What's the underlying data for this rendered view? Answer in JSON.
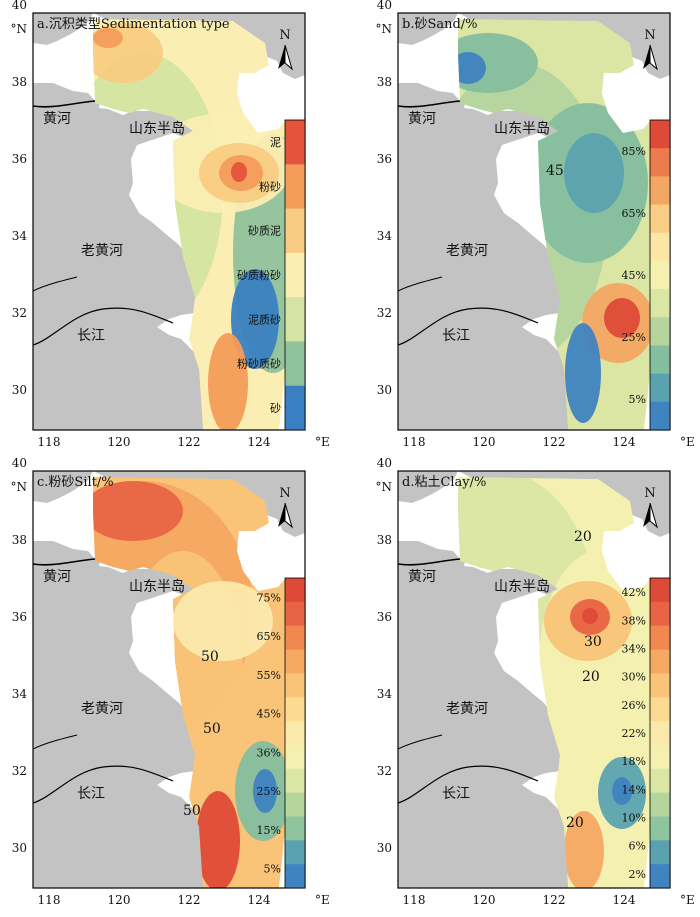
{
  "panels": [
    {
      "id": "a",
      "title": "a.沉积类型Sedimentation type",
      "legend": {
        "type": "categorical",
        "labels": [
          "泥",
          "粉砂",
          "砂质泥",
          "砂质粉砂",
          "泥质砂",
          "粉砂质砂",
          "砂"
        ],
        "colors": [
          "#e4543c",
          "#f49c5a",
          "#f8cc82",
          "#fbeeb2",
          "#d5e4a2",
          "#8fc19c",
          "#3a7fc1"
        ]
      },
      "contour_labels": []
    },
    {
      "id": "b",
      "title": "b.砂Sand/%",
      "legend": {
        "type": "continuous",
        "labels": [
          "85%",
          "65%",
          "45%",
          "25%",
          "5%"
        ],
        "colors": [
          "#de4a38",
          "#ec7b4e",
          "#f4a664",
          "#f9cd86",
          "#fbe6a6",
          "#f3f0b0",
          "#dbe6a4",
          "#b5d59f",
          "#84be9f",
          "#5ba2b0",
          "#3f83c0"
        ]
      },
      "contour_labels": [
        "45"
      ]
    },
    {
      "id": "c",
      "title": "c.粉砂Silt/%",
      "legend": {
        "type": "continuous",
        "labels": [
          "75%",
          "65%",
          "55%",
          "45%",
          "36%",
          "25%",
          "15%",
          "5%"
        ],
        "colors": [
          "#de4a38",
          "#e86444",
          "#f08850",
          "#f5a862",
          "#f9c478",
          "#fbda92",
          "#fbe9ac",
          "#f3f0b0",
          "#dbe6a4",
          "#b5d59f",
          "#8ec59f",
          "#5ba2b0",
          "#3f83c0"
        ]
      },
      "contour_labels": [
        "50",
        "50",
        "50"
      ]
    },
    {
      "id": "d",
      "title": "d.粘土Clay/%",
      "legend": {
        "type": "continuous",
        "labels": [
          "42%",
          "38%",
          "34%",
          "30%",
          "26%",
          "22%",
          "18%",
          "14%",
          "10%",
          "6%",
          "2%"
        ],
        "colors": [
          "#de4a38",
          "#e86444",
          "#f08850",
          "#f5a862",
          "#f9c478",
          "#fbda92",
          "#fbe9ac",
          "#f3f0b0",
          "#dbe6a4",
          "#b5d59f",
          "#8ec59f",
          "#5ba2b0",
          "#3f83c0"
        ]
      },
      "contour_labels": [
        "20",
        "30",
        "20",
        "20"
      ]
    }
  ],
  "axes": {
    "lon_ticks": [
      "118",
      "120",
      "122",
      "124"
    ],
    "lon_unit": "°E",
    "lat_ticks": [
      "30",
      "32",
      "34",
      "36",
      "38",
      "40"
    ],
    "lat_unit": "°N"
  },
  "places": {
    "yellow_river": "黄河",
    "shandong": "山东半岛",
    "old_yellow_river": "老黄河",
    "yangtze": "长江"
  },
  "north_arrow": "N",
  "colors": {
    "land": "#c3c3c3",
    "sea": "#ffffff",
    "frame": "#000000"
  }
}
